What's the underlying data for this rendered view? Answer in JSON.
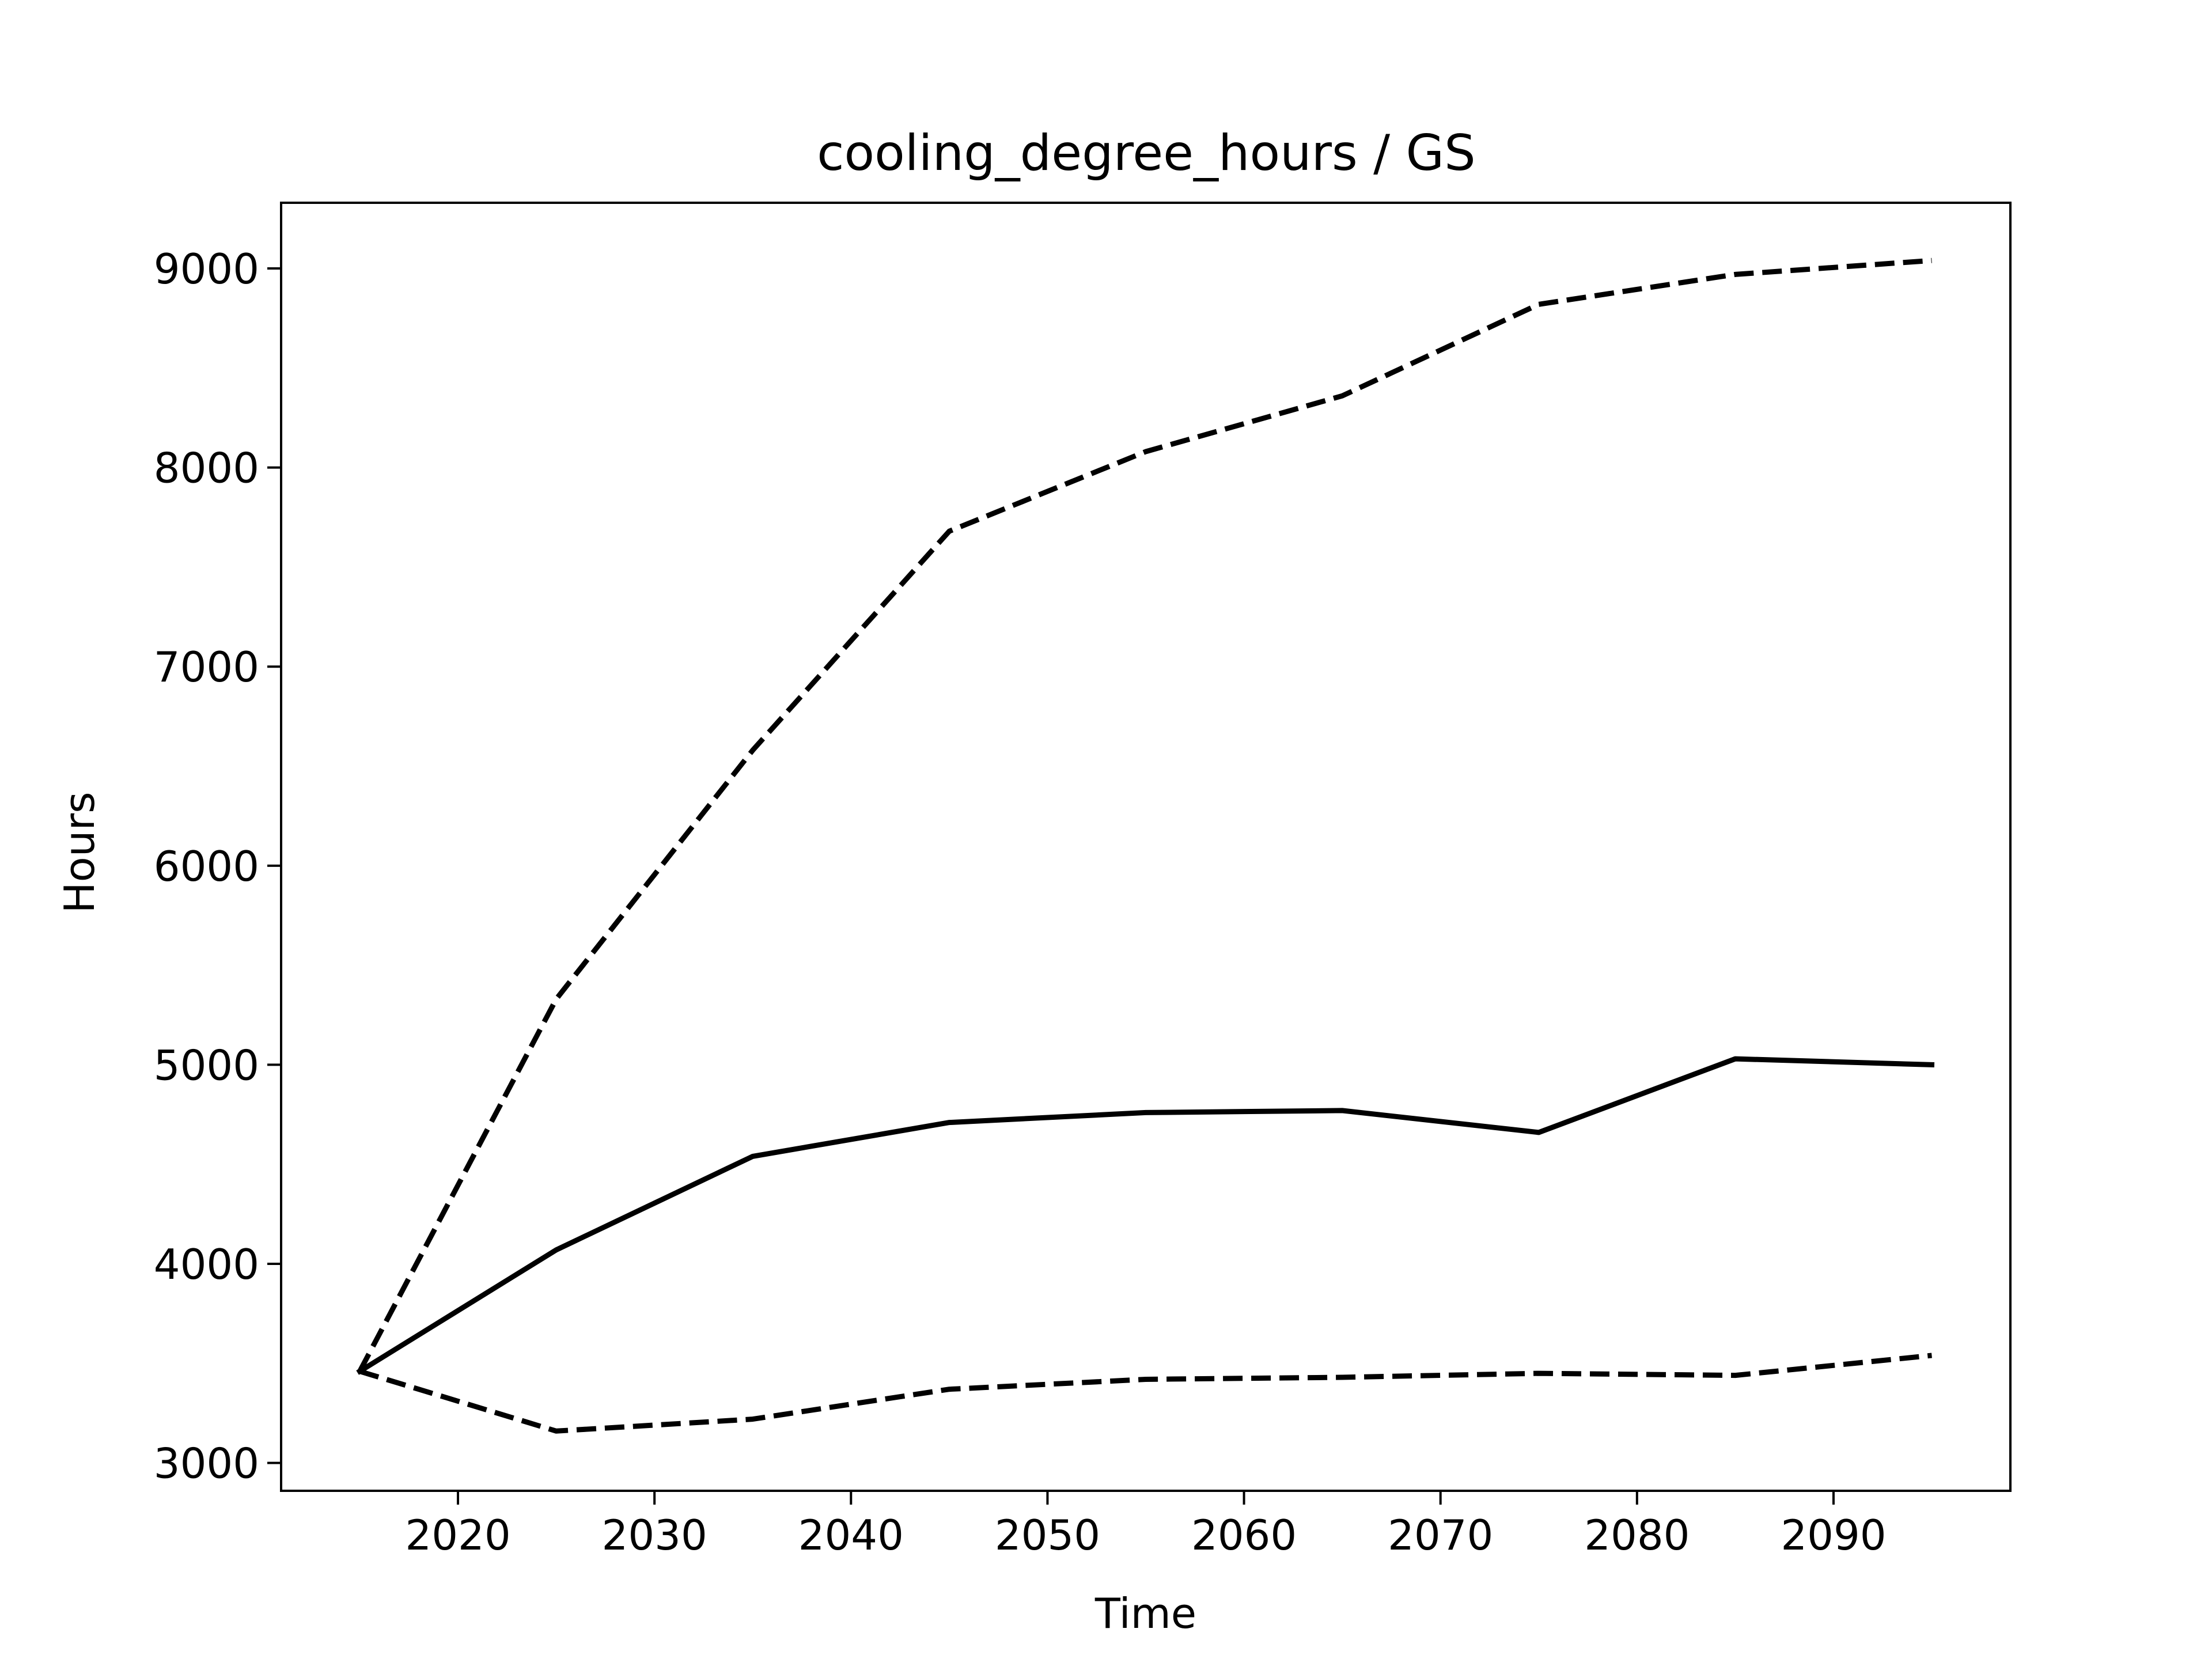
{
  "chart_data": {
    "type": "line",
    "title": "cooling_degree_hours / GS",
    "xlabel": "Time",
    "ylabel": "Hours",
    "xlim": [
      2011,
      2099
    ],
    "ylim": [
      2860,
      9330
    ],
    "x_ticks": [
      2020,
      2030,
      2040,
      2050,
      2060,
      2070,
      2080,
      2090
    ],
    "y_ticks": [
      3000,
      4000,
      5000,
      6000,
      7000,
      8000,
      9000
    ],
    "grid": false,
    "x": [
      2015,
      2025,
      2035,
      2045,
      2055,
      2065,
      2075,
      2085,
      2095
    ],
    "series": [
      {
        "style": "solid",
        "values": [
          3460,
          4070,
          4540,
          4710,
          4760,
          4770,
          4660,
          5030,
          5000
        ]
      },
      {
        "style": "dashed",
        "values": [
          3460,
          5330,
          6580,
          7680,
          8080,
          8360,
          8820,
          8970,
          9040
        ]
      },
      {
        "style": "dashed",
        "values": [
          3460,
          3160,
          3220,
          3370,
          3420,
          3430,
          3450,
          3440,
          3540
        ]
      }
    ],
    "colors": {
      "line": "#000000",
      "axes": "#000000",
      "background": "#ffffff"
    }
  }
}
